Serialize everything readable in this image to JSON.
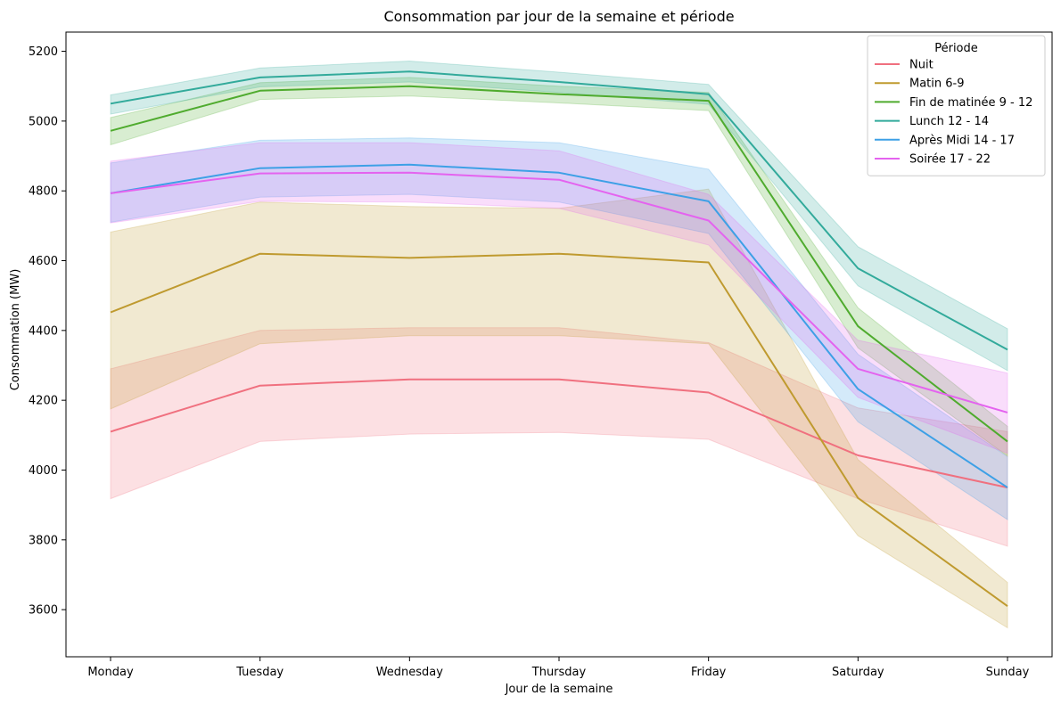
{
  "chart_data": {
    "type": "line",
    "title": "Consommation par jour de la semaine et période",
    "xlabel": "Jour de la semaine",
    "ylabel": "Consommation (MW)",
    "categories": [
      "Monday",
      "Tuesday",
      "Wednesday",
      "Thursday",
      "Friday",
      "Saturday",
      "Sunday"
    ],
    "ylim": [
      3465,
      5255
    ],
    "yticks": [
      3600,
      3800,
      4000,
      4200,
      4400,
      4600,
      4800,
      5000,
      5200
    ],
    "grid": false,
    "legend": {
      "title": "Période",
      "placement": "top-right"
    },
    "series": [
      {
        "name": "Nuit",
        "color": "#f0707f",
        "values": [
          4110,
          4242,
          4260,
          4260,
          4222,
          4042,
          3950
        ],
        "ci_low": [
          3918,
          4082,
          4103,
          4108,
          4088,
          3918,
          3782
        ],
        "ci_high": [
          4290,
          4400,
          4408,
          4408,
          4365,
          4178,
          4110
        ]
      },
      {
        "name": "Matin 6-9",
        "color": "#bf9a2f",
        "values": [
          4452,
          4620,
          4608,
          4620,
          4595,
          3920,
          3610
        ],
        "ci_low": [
          4175,
          4362,
          4385,
          4385,
          4362,
          3812,
          3548
        ],
        "ci_high": [
          4682,
          4768,
          4755,
          4750,
          4805,
          4030,
          3678
        ]
      },
      {
        "name": "Fin de matinée 9 - 12",
        "color": "#4fab2e",
        "values": [
          4972,
          5087,
          5100,
          5077,
          5058,
          4412,
          4082
        ],
        "ci_low": [
          4932,
          5062,
          5072,
          5052,
          5030,
          4350,
          4040
        ],
        "ci_high": [
          5010,
          5110,
          5125,
          5100,
          5082,
          4465,
          4125
        ]
      },
      {
        "name": "Lunch 12 - 14",
        "color": "#32aa9b",
        "values": [
          5050,
          5125,
          5142,
          5112,
          5077,
          4578,
          4345
        ],
        "ci_low": [
          5020,
          5098,
          5112,
          5082,
          5048,
          4528,
          4285
        ],
        "ci_high": [
          5075,
          5152,
          5172,
          5140,
          5105,
          4640,
          4405
        ]
      },
      {
        "name": "Après Midi 14 - 17",
        "color": "#3da0e6",
        "values": [
          4793,
          4865,
          4875,
          4852,
          4770,
          4232,
          3950
        ],
        "ci_low": [
          4710,
          4782,
          4790,
          4768,
          4678,
          4138,
          3858
        ],
        "ci_high": [
          4880,
          4945,
          4952,
          4938,
          4862,
          4332,
          4038
        ]
      },
      {
        "name": "Soirée 17 - 22",
        "color": "#e463ef",
        "values": [
          4793,
          4850,
          4852,
          4832,
          4715,
          4290,
          4165
        ],
        "ci_low": [
          4708,
          4770,
          4768,
          4750,
          4645,
          4208,
          4048
        ],
        "ci_high": [
          4885,
          4938,
          4938,
          4915,
          4790,
          4372,
          4278
        ]
      }
    ]
  }
}
